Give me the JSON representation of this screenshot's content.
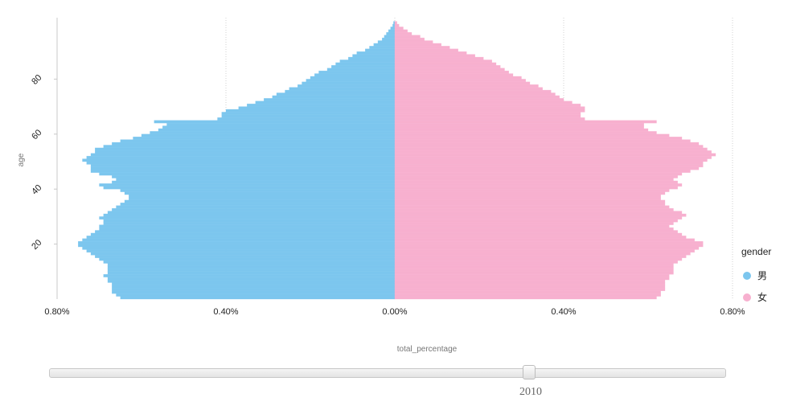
{
  "chart_data": {
    "type": "bar",
    "orientation": "horizontal",
    "subtype": "population-pyramid",
    "xlabel": "total_percentage",
    "ylabel": "age",
    "xlim": [
      -0.8,
      0.8
    ],
    "ylim": [
      0,
      100
    ],
    "x_ticks": [
      "0.80%",
      "0.40%",
      "0.00%",
      "0.40%",
      "0.80%"
    ],
    "y_ticks": [
      "20",
      "40",
      "60",
      "80"
    ],
    "legend_title": "gender",
    "legend_position": "right",
    "series": [
      {
        "name": "男",
        "color": "#7cc6ee",
        "side": "left",
        "values": [
          0.65,
          0.66,
          0.67,
          0.67,
          0.67,
          0.67,
          0.68,
          0.68,
          0.69,
          0.68,
          0.68,
          0.68,
          0.68,
          0.69,
          0.7,
          0.71,
          0.72,
          0.73,
          0.74,
          0.75,
          0.75,
          0.74,
          0.73,
          0.72,
          0.71,
          0.7,
          0.7,
          0.69,
          0.69,
          0.7,
          0.69,
          0.68,
          0.67,
          0.66,
          0.65,
          0.64,
          0.63,
          0.63,
          0.64,
          0.65,
          0.69,
          0.7,
          0.67,
          0.66,
          0.67,
          0.7,
          0.72,
          0.72,
          0.72,
          0.73,
          0.74,
          0.73,
          0.72,
          0.71,
          0.71,
          0.69,
          0.67,
          0.65,
          0.62,
          0.6,
          0.58,
          0.56,
          0.55,
          0.54,
          0.57,
          0.42,
          0.41,
          0.41,
          0.4,
          0.37,
          0.35,
          0.33,
          0.31,
          0.29,
          0.28,
          0.26,
          0.25,
          0.23,
          0.22,
          0.21,
          0.2,
          0.19,
          0.18,
          0.16,
          0.15,
          0.14,
          0.13,
          0.11,
          0.1,
          0.09,
          0.07,
          0.06,
          0.05,
          0.04,
          0.03,
          0.025,
          0.02,
          0.015,
          0.01,
          0.005,
          0.003
        ]
      },
      {
        "name": "女",
        "color": "#f7b0cf",
        "side": "right",
        "values": [
          0.62,
          0.63,
          0.63,
          0.64,
          0.64,
          0.64,
          0.64,
          0.65,
          0.65,
          0.66,
          0.66,
          0.66,
          0.66,
          0.67,
          0.68,
          0.69,
          0.7,
          0.71,
          0.72,
          0.73,
          0.73,
          0.71,
          0.69,
          0.68,
          0.67,
          0.66,
          0.65,
          0.66,
          0.67,
          0.68,
          0.69,
          0.68,
          0.66,
          0.65,
          0.64,
          0.64,
          0.63,
          0.63,
          0.64,
          0.65,
          0.67,
          0.68,
          0.67,
          0.66,
          0.67,
          0.68,
          0.7,
          0.72,
          0.73,
          0.73,
          0.74,
          0.75,
          0.76,
          0.75,
          0.74,
          0.73,
          0.72,
          0.7,
          0.68,
          0.65,
          0.62,
          0.6,
          0.59,
          0.59,
          0.62,
          0.45,
          0.44,
          0.44,
          0.45,
          0.45,
          0.44,
          0.42,
          0.4,
          0.39,
          0.38,
          0.37,
          0.35,
          0.34,
          0.32,
          0.31,
          0.3,
          0.28,
          0.27,
          0.26,
          0.25,
          0.24,
          0.23,
          0.21,
          0.19,
          0.17,
          0.15,
          0.13,
          0.11,
          0.09,
          0.07,
          0.06,
          0.04,
          0.03,
          0.02,
          0.01,
          0.005
        ]
      }
    ]
  },
  "slider": {
    "value_label": "2010",
    "position": 0.71
  }
}
